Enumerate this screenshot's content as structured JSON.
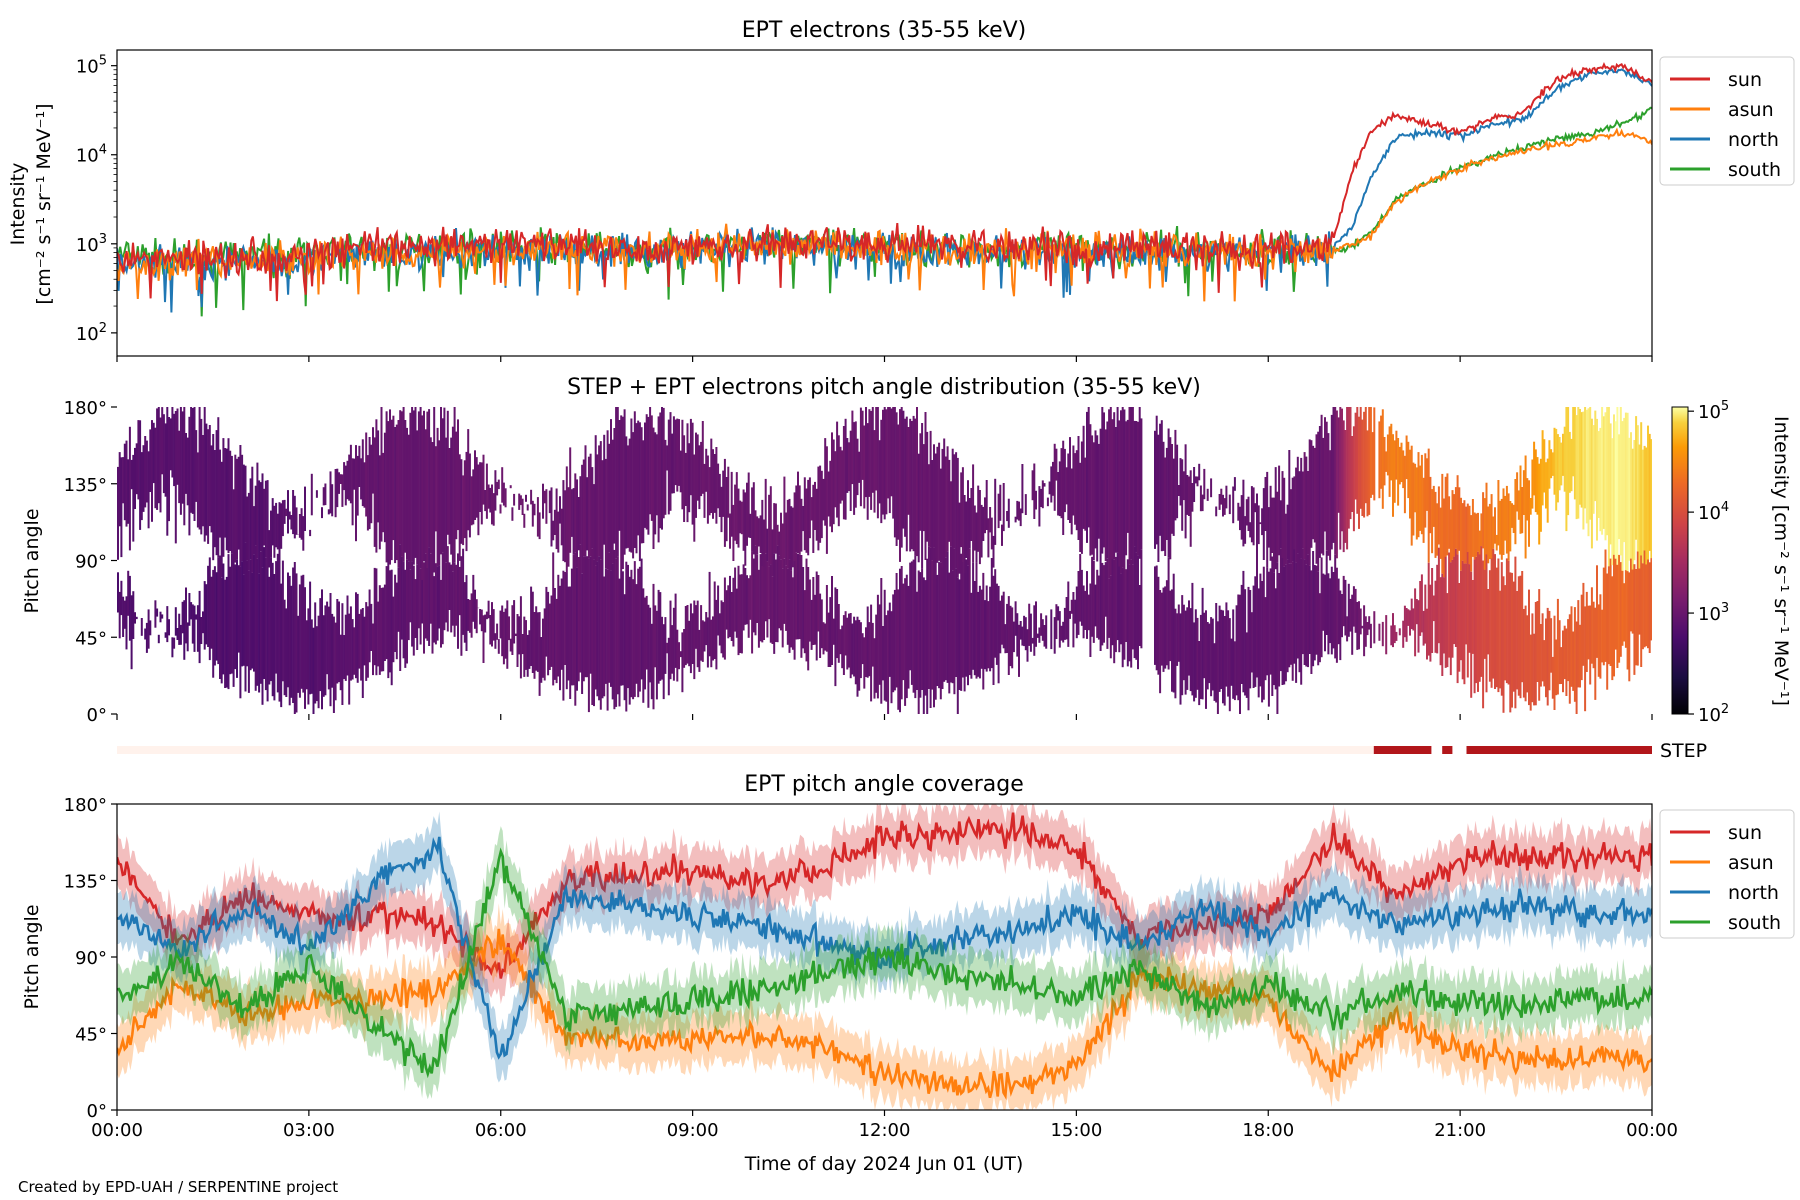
{
  "figure": {
    "credit": "Created by EPD-UAH / SERPENTINE project",
    "xlabel": "Time of day 2024 Jun 01 (UT)",
    "xticks": [
      "00:00",
      "03:00",
      "06:00",
      "09:00",
      "12:00",
      "15:00",
      "18:00",
      "21:00",
      "00:00"
    ],
    "series_colors": {
      "sun": "#d62728",
      "asun": "#ff7f0e",
      "north": "#1f77b4",
      "south": "#2ca02c"
    }
  },
  "chart_data": [
    {
      "type": "line",
      "title": "EPT electrons (35-55 keV)",
      "ylabel": [
        "Intensity",
        "[cm⁻² s⁻¹ sr⁻¹ MeV⁻¹]"
      ],
      "yscale": "log",
      "ylim": [
        55,
        150000
      ],
      "yticks": [
        {
          "v": 100,
          "base": "10",
          "exp": "2"
        },
        {
          "v": 1000,
          "base": "10",
          "exp": "3"
        },
        {
          "v": 10000,
          "base": "10",
          "exp": "4"
        },
        {
          "v": 100000,
          "base": "10",
          "exp": "5"
        }
      ],
      "xlim_hours": [
        0,
        24
      ],
      "legend_position": "outside-right",
      "x_hours": [
        0,
        1,
        2,
        3,
        4,
        5,
        6,
        7,
        8,
        9,
        10,
        11,
        12,
        13,
        14,
        15,
        16,
        17,
        18,
        18.5,
        19,
        19.3,
        19.6,
        20,
        20.5,
        21,
        21.5,
        22,
        22.5,
        23,
        23.5,
        24
      ],
      "series": [
        {
          "name": "sun",
          "values": [
            700,
            750,
            700,
            800,
            900,
            950,
            1000,
            950,
            900,
            950,
            1000,
            1000,
            950,
            950,
            900,
            900,
            900,
            900,
            900,
            950,
            1000,
            6000,
            18000,
            28000,
            22000,
            18000,
            25000,
            30000,
            70000,
            90000,
            100000,
            65000
          ]
        },
        {
          "name": "asun",
          "values": [
            650,
            600,
            650,
            700,
            800,
            850,
            900,
            900,
            850,
            900,
            950,
            950,
            900,
            850,
            850,
            850,
            850,
            850,
            850,
            850,
            850,
            1000,
            1200,
            3000,
            5000,
            7000,
            9000,
            11000,
            13000,
            15000,
            18000,
            14000
          ]
        },
        {
          "name": "north",
          "values": [
            650,
            600,
            650,
            700,
            750,
            800,
            850,
            850,
            800,
            850,
            900,
            900,
            850,
            800,
            800,
            800,
            800,
            800,
            800,
            850,
            900,
            1500,
            5500,
            16000,
            18000,
            16000,
            22000,
            25000,
            55000,
            80000,
            90000,
            60000
          ]
        },
        {
          "name": "south",
          "values": [
            750,
            650,
            700,
            800,
            850,
            900,
            950,
            900,
            850,
            900,
            950,
            1000,
            950,
            900,
            850,
            850,
            850,
            850,
            850,
            850,
            850,
            950,
            1300,
            3200,
            5000,
            7000,
            9500,
            12000,
            15000,
            17000,
            22000,
            32000
          ]
        }
      ]
    },
    {
      "type": "heatmap",
      "title": "STEP + EPT electrons pitch angle distribution (35-55 keV)",
      "ylabel": "Pitch angle",
      "yticks": [
        "0°",
        "45°",
        "90°",
        "135°",
        "180°"
      ],
      "ylim": [
        0,
        180
      ],
      "colorbar": {
        "label": "Intensity [cm⁻² s⁻¹ sr⁻¹ MeV⁻¹]",
        "scale": "log",
        "range": [
          100,
          110000
        ],
        "ticks": [
          {
            "v": 100,
            "base": "10",
            "exp": "2"
          },
          {
            "v": 1000,
            "base": "10",
            "exp": "3"
          },
          {
            "v": 10000,
            "base": "10",
            "exp": "4"
          },
          {
            "v": 100000,
            "base": "10",
            "exp": "5"
          }
        ],
        "colormap": "inferno"
      },
      "x_hours": [
        0,
        1,
        2,
        3,
        4,
        5,
        6,
        7,
        8,
        9,
        10,
        11,
        12,
        13,
        14,
        15,
        16,
        17,
        18,
        18.5,
        19,
        19.3,
        19.6,
        20,
        20.5,
        21,
        21.5,
        22,
        22.5,
        23,
        23.5,
        24
      ],
      "intensity_sun_side": [
        700,
        750,
        700,
        800,
        900,
        950,
        1000,
        950,
        900,
        950,
        1000,
        1000,
        950,
        950,
        900,
        900,
        900,
        900,
        900,
        950,
        1000,
        6000,
        18000,
        28000,
        22000,
        18000,
        25000,
        30000,
        70000,
        90000,
        100000,
        65000
      ],
      "intensity_antisun_side": [
        650,
        600,
        650,
        700,
        800,
        850,
        900,
        900,
        850,
        900,
        950,
        950,
        900,
        850,
        850,
        850,
        850,
        850,
        850,
        850,
        850,
        1000,
        1200,
        3000,
        5000,
        7000,
        9000,
        11000,
        13000,
        15000,
        18000,
        14000
      ]
    },
    {
      "type": "line",
      "title": "EPT pitch angle coverage",
      "ylabel": "Pitch angle",
      "yticks": [
        "0°",
        "45°",
        "90°",
        "135°",
        "180°"
      ],
      "ylim": [
        0,
        180
      ],
      "band_halfwidth_deg": 15,
      "legend_position": "outside-right",
      "x_hours": [
        0,
        1,
        2,
        3,
        4,
        5,
        6,
        7,
        8,
        9,
        10,
        11,
        12,
        13,
        14,
        15,
        16,
        17,
        18,
        19,
        20,
        21,
        22,
        23,
        24
      ],
      "series": [
        {
          "name": "sun",
          "values": [
            145,
            100,
            125,
            115,
            115,
            110,
            80,
            135,
            140,
            140,
            135,
            140,
            160,
            165,
            165,
            155,
            100,
            110,
            115,
            160,
            125,
            145,
            150,
            150,
            150
          ]
        },
        {
          "name": "asun",
          "values": [
            35,
            75,
            55,
            65,
            65,
            70,
            100,
            45,
            40,
            40,
            45,
            40,
            20,
            15,
            15,
            25,
            80,
            70,
            65,
            20,
            55,
            35,
            30,
            30,
            30
          ]
        },
        {
          "name": "north",
          "values": [
            115,
            95,
            120,
            95,
            130,
            155,
            30,
            125,
            120,
            115,
            110,
            100,
            90,
            100,
            105,
            115,
            95,
            120,
            105,
            125,
            110,
            115,
            120,
            115,
            115
          ]
        },
        {
          "name": "south",
          "values": [
            65,
            85,
            60,
            85,
            50,
            25,
            150,
            55,
            60,
            65,
            70,
            80,
            90,
            80,
            75,
            65,
            85,
            60,
            75,
            55,
            70,
            65,
            60,
            65,
            65
          ]
        }
      ]
    },
    {
      "type": "bar",
      "label": "STEP",
      "segments_hours": [
        [
          0,
          19.65,
          "light"
        ],
        [
          19.65,
          20.55,
          "dark"
        ],
        [
          20.72,
          20.88,
          "dark"
        ],
        [
          21.1,
          24,
          "dark"
        ]
      ]
    }
  ]
}
